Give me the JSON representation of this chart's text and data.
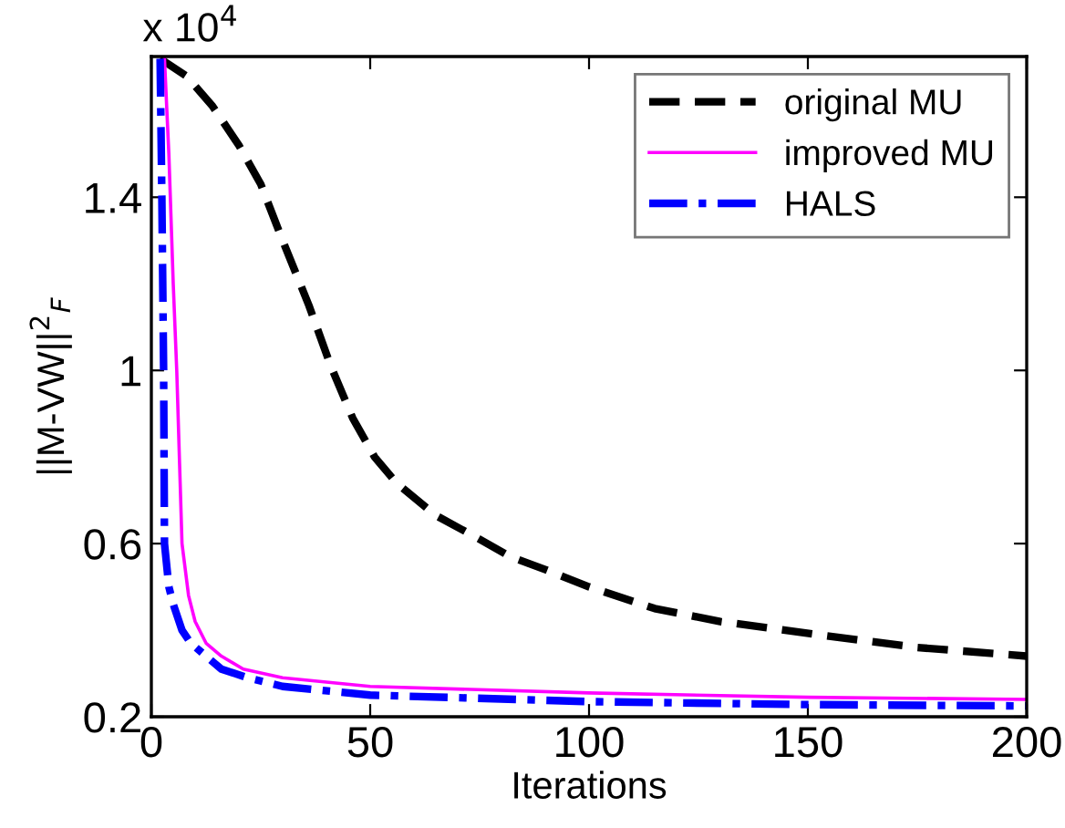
{
  "chart_data": {
    "type": "line",
    "xlabel": "Iterations",
    "ylabel": "||M-VW||$^{2}$$_{F}$",
    "annotations": [
      "x 10$^{4}$"
    ],
    "xlim": [
      0,
      200
    ],
    "ylim": [
      0.2,
      1.725
    ],
    "xticks": [
      0,
      50,
      100,
      150,
      200
    ],
    "yticks": [
      0.2,
      0.6,
      1,
      1.4
    ],
    "grid": false,
    "legend": "top right",
    "series": [
      {
        "name": "original MU",
        "color": "#000000",
        "line_style": "dashed",
        "x": [
          2,
          8,
          14,
          20,
          25,
          30,
          36,
          41,
          46,
          51,
          56,
          65,
          75,
          82,
          90,
          100,
          115,
          130,
          152,
          175,
          200
        ],
        "values": [
          1.72,
          1.68,
          1.61,
          1.52,
          1.43,
          1.3,
          1.15,
          1.01,
          0.89,
          0.8,
          0.74,
          0.665,
          0.61,
          0.57,
          0.54,
          0.5,
          0.45,
          0.42,
          0.39,
          0.36,
          0.34
        ]
      },
      {
        "name": "improved MU",
        "color": "#ff00ff",
        "line_style": "solid",
        "x": [
          3,
          4,
          5,
          5.8,
          7,
          8.5,
          10,
          12.5,
          16,
          21,
          30,
          50,
          100,
          150,
          200
        ],
        "values": [
          1.72,
          1.5,
          1.2,
          1.0,
          0.6,
          0.48,
          0.42,
          0.37,
          0.34,
          0.31,
          0.29,
          0.27,
          0.255,
          0.245,
          0.24
        ]
      },
      {
        "name": "HALS",
        "color": "#0000ff",
        "line_style": "dashdot",
        "x": [
          2,
          2.4,
          2.8,
          3,
          4,
          5,
          7,
          9,
          12.5,
          16,
          22,
          30,
          50,
          100,
          150,
          200
        ],
        "values": [
          1.72,
          1.4,
          1.0,
          0.6,
          0.5,
          0.46,
          0.4,
          0.37,
          0.34,
          0.31,
          0.29,
          0.27,
          0.25,
          0.235,
          0.228,
          0.225
        ]
      }
    ]
  }
}
